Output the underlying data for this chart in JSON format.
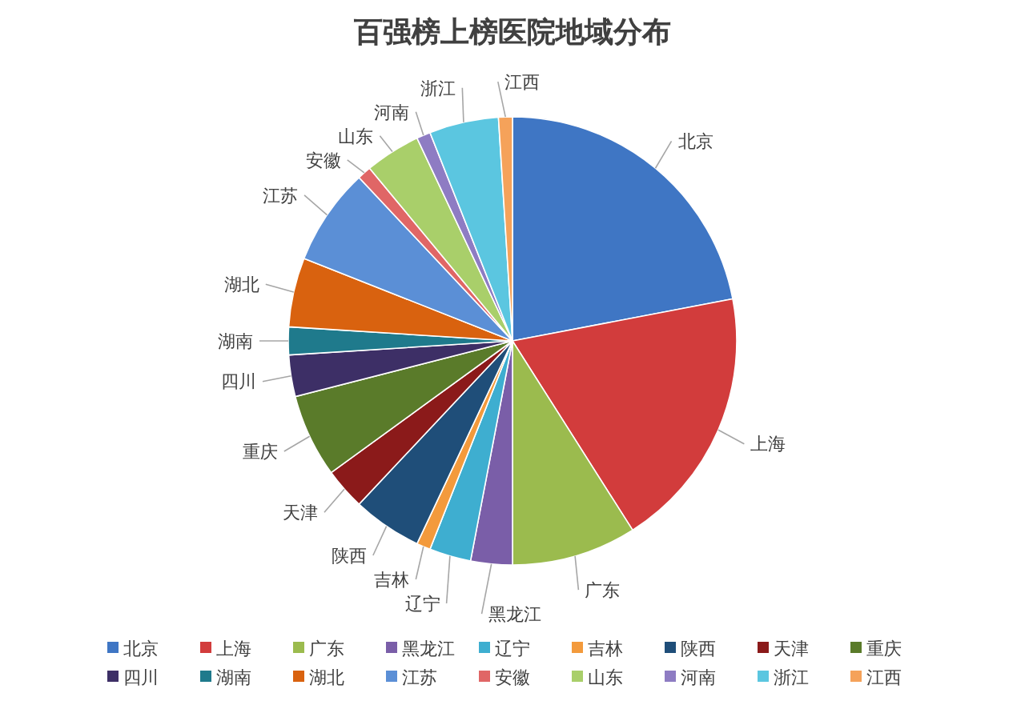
{
  "chart_data": {
    "type": "pie",
    "title": "百强榜上榜医院地域分布",
    "categories": [
      "北京",
      "上海",
      "广东",
      "黑龙江",
      "辽宁",
      "吉林",
      "陕西",
      "天津",
      "重庆",
      "四川",
      "湖南",
      "湖北",
      "江苏",
      "安徽",
      "山东",
      "河南",
      "浙江",
      "江西"
    ],
    "values": [
      22,
      19,
      9,
      3,
      3,
      1,
      5,
      3,
      6,
      3,
      2,
      5,
      7,
      1,
      4,
      1,
      5,
      1
    ],
    "colors": [
      "#3f76c4",
      "#d23c3c",
      "#9bbb4e",
      "#7a5ea8",
      "#3eaed0",
      "#f39a3c",
      "#1f4e79",
      "#8b1a1a",
      "#5a7b2a",
      "#3d2f66",
      "#1f7a8c",
      "#d9620f",
      "#5b8fd6",
      "#e06666",
      "#a9cf6a",
      "#8e7cc3",
      "#5bc6e0",
      "#f5a25a"
    ],
    "legend": "bottom"
  }
}
